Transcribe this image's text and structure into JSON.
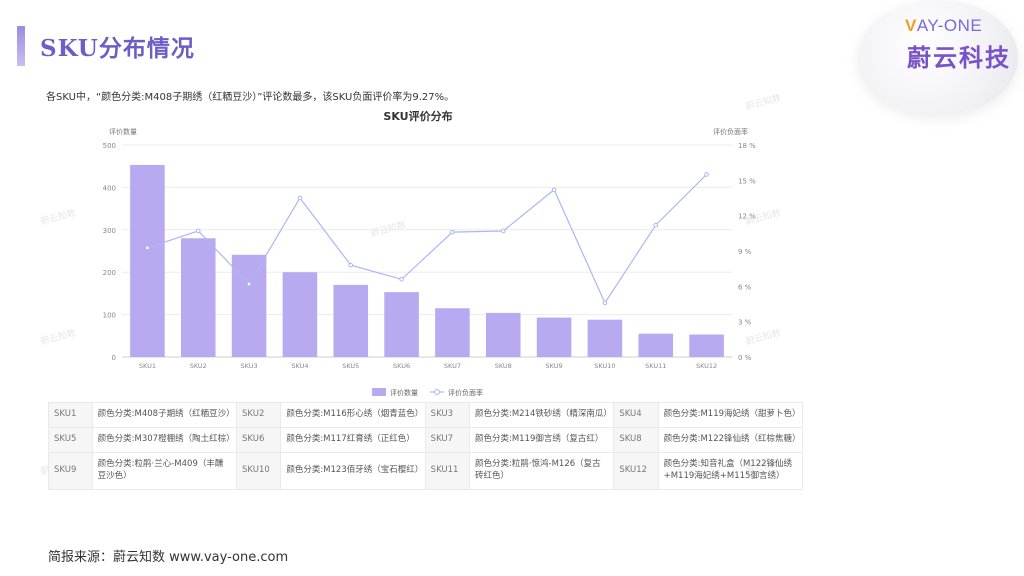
{
  "header": {
    "title": "SKU分布情况",
    "logo_en_v": "V",
    "logo_en_rest": "AY-ONE",
    "logo_cn": "蔚云科技"
  },
  "summary": "各SKU中，“颜色分类:M408子期绣（红粞豆沙）”评论数最多，该SKU负面评价率为9.27%。",
  "watermark": "蔚云知数",
  "chart_data": {
    "type": "bar",
    "title": "SKU评价分布",
    "ylabel_left": "评价数量",
    "ylabel_right": "评价负面率",
    "categories": [
      "SKU1",
      "SKU2",
      "SKU3",
      "SKU4",
      "SKU5",
      "SKU6",
      "SKU7",
      "SKU8",
      "SKU9",
      "SKU10",
      "SKU11",
      "SKU12"
    ],
    "series": [
      {
        "name": "评价数量",
        "kind": "bar",
        "axis": "left",
        "color": "#b9a9f0",
        "values": [
          453,
          280,
          241,
          200,
          170,
          153,
          115,
          104,
          93,
          88,
          55,
          53
        ]
      },
      {
        "name": "评价负面率",
        "kind": "line",
        "axis": "right",
        "color": "#a9b8ef",
        "values": [
          9.27,
          10.7,
          6.2,
          13.5,
          7.8,
          6.6,
          10.6,
          10.7,
          14.2,
          4.6,
          11.2,
          15.5
        ]
      }
    ],
    "ylim_left": [
      0,
      500
    ],
    "yticks_left": [
      "0",
      "100",
      "200",
      "300",
      "400",
      "500"
    ],
    "ylim_right": [
      0,
      18
    ],
    "yticks_right": [
      "0 %",
      "3 %",
      "6 %",
      "9 %",
      "12 %",
      "15 %",
      "18 %"
    ],
    "grid": true,
    "legend": "bottom"
  },
  "sku_table": [
    [
      {
        "sku": "SKU1",
        "desc": "颜色分类:M408子期绣（红粞豆沙）"
      },
      {
        "sku": "SKU2",
        "desc": "颜色分类:M116形心绣（烟青蓝色）"
      },
      {
        "sku": "SKU3",
        "desc": "颜色分类:M214铁砂绣（精深南瓜）"
      },
      {
        "sku": "SKU4",
        "desc": "颜色分类:M119海妃绣（甜萝卜色）"
      }
    ],
    [
      {
        "sku": "SKU5",
        "desc": "颜色分类:M307橙棚绣（陶土红棕）"
      },
      {
        "sku": "SKU6",
        "desc": "颜色分类:M117红膏绣（正红色）"
      },
      {
        "sku": "SKU7",
        "desc": "颜色分类:M119御言绣（复古红）"
      },
      {
        "sku": "SKU8",
        "desc": "颜色分类:M122锋仙绣（红棕焦糖）"
      }
    ],
    [
      {
        "sku": "SKU9",
        "desc": "颜色分类:粒鹃·兰心-M409（丰醺豆沙色）"
      },
      {
        "sku": "SKU10",
        "desc": "颜色分类:M123佰牙绣（宝石樱红）"
      },
      {
        "sku": "SKU11",
        "desc": "颜色分类:粒鹃·惊鸿-M126（复古砖红色）"
      },
      {
        "sku": "SKU12",
        "desc": "颜色分类:知音礼盒（M122锋仙绣+M119海妃绣+M115御言绣）"
      }
    ]
  ],
  "source": "简报来源：蔚云知数 www.vay-one.com"
}
